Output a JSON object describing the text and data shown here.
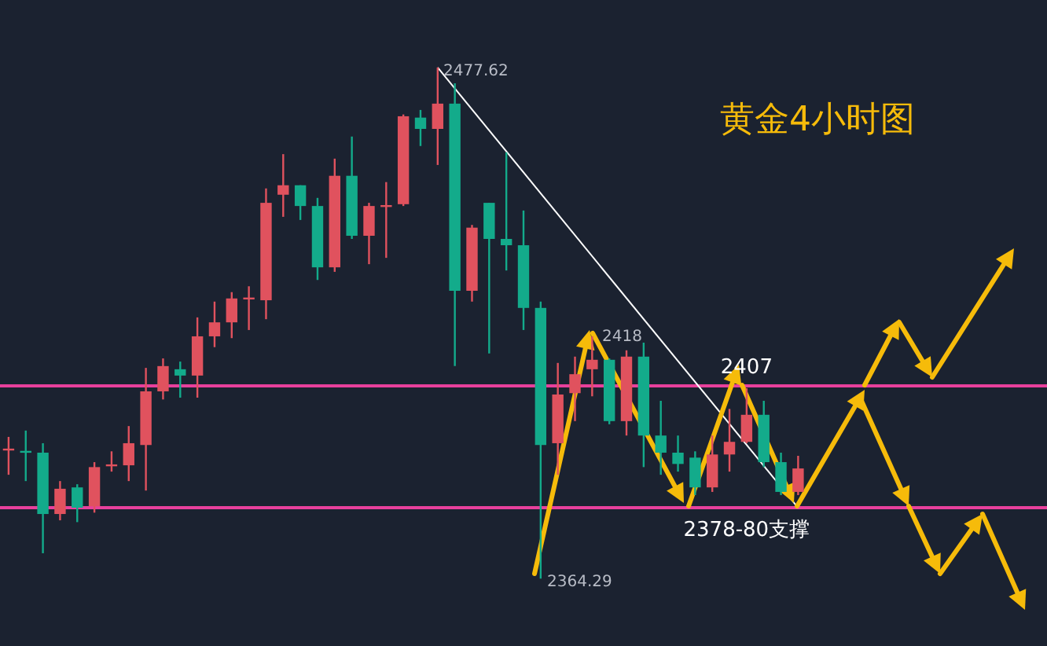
{
  "chart_data": {
    "type": "candlestick",
    "title": "黄金4小时图",
    "categories": [
      null,
      null,
      null,
      null,
      null,
      null,
      null,
      null,
      null,
      null,
      null,
      null,
      null,
      null,
      null,
      null,
      null,
      null,
      null,
      null,
      null,
      null,
      null,
      null,
      null,
      null,
      null,
      null,
      null,
      null,
      null,
      null,
      null,
      null,
      null,
      null,
      null,
      null,
      null,
      null,
      null,
      null,
      null,
      null,
      null,
      null,
      null,
      null,
      null,
      null,
      null,
      null,
      null,
      null,
      null,
      null,
      null,
      null,
      null,
      null,
      null
    ],
    "ohlc": [
      [
        2392.9,
        2395.7,
        2387.3,
        2393.1
      ],
      [
        2392.6,
        2397.1,
        2385.9,
        2392.4
      ],
      [
        2392.2,
        2394.3,
        2369.9,
        2378.6
      ],
      [
        2378.6,
        2385.9,
        2377.2,
        2384.2
      ],
      [
        2384.5,
        2385.2,
        2376.8,
        2380.0
      ],
      [
        2380.3,
        2390.1,
        2378.9,
        2389.0
      ],
      [
        2389.4,
        2392.5,
        2388.0,
        2389.6
      ],
      [
        2389.4,
        2398.1,
        2385.9,
        2394.3
      ],
      [
        2393.9,
        2411.0,
        2383.8,
        2405.8
      ],
      [
        2405.8,
        2413.1,
        2404.0,
        2411.4
      ],
      [
        2410.7,
        2412.4,
        2404.4,
        2409.3
      ],
      [
        2409.3,
        2422.2,
        2404.4,
        2418.0
      ],
      [
        2418.0,
        2425.7,
        2415.6,
        2421.1
      ],
      [
        2421.1,
        2427.8,
        2417.6,
        2426.4
      ],
      [
        2426.4,
        2429.1,
        2419.4,
        2426.6
      ],
      [
        2426.0,
        2450.8,
        2421.8,
        2447.6
      ],
      [
        2449.4,
        2458.4,
        2444.5,
        2451.5
      ],
      [
        2451.5,
        2451.5,
        2443.8,
        2446.9
      ],
      [
        2446.9,
        2448.7,
        2430.5,
        2433.3
      ],
      [
        2433.3,
        2457.4,
        2432.3,
        2453.6
      ],
      [
        2453.6,
        2462.3,
        2439.6,
        2440.3
      ],
      [
        2440.3,
        2447.6,
        2434.0,
        2446.9
      ],
      [
        2446.9,
        2452.2,
        2435.4,
        2447.1
      ],
      [
        2447.3,
        2467.2,
        2446.9,
        2466.8
      ],
      [
        2466.5,
        2468.2,
        2460.2,
        2464.0
      ],
      [
        2464.0,
        2477.62,
        2456.0,
        2469.6
      ],
      [
        2469.6,
        2474.1,
        2411.4,
        2428.1
      ],
      [
        2428.1,
        2442.7,
        2425.7,
        2442.1
      ],
      [
        2447.6,
        2447.6,
        2414.2,
        2439.6
      ],
      [
        2439.6,
        2458.8,
        2432.6,
        2438.2
      ],
      [
        2438.2,
        2445.9,
        2419.4,
        2424.3
      ],
      [
        2424.3,
        2425.7,
        2364.29,
        2393.9
      ],
      [
        2394.3,
        2412.1,
        2387.3,
        2405.1
      ],
      [
        2405.4,
        2413.5,
        2399.2,
        2409.6
      ],
      [
        2410.7,
        2418,
        2404.7,
        2412.8
      ],
      [
        2412.8,
        2413.1,
        2398.5,
        2399.2
      ],
      [
        2399.2,
        2414.9,
        2396.0,
        2413.5
      ],
      [
        2413.5,
        2416.6,
        2389.0,
        2396.0
      ],
      [
        2396.0,
        2403.7,
        2387.3,
        2392.2
      ],
      [
        2392.2,
        2396.0,
        2388.0,
        2389.7
      ],
      [
        2391.1,
        2392.5,
        2382.8,
        2384.5
      ],
      [
        2384.5,
        2396.0,
        2383.5,
        2391.8
      ],
      [
        2391.8,
        2401.9,
        2388.0,
        2394.6
      ],
      [
        2394.6,
        2406.5,
        2394.3,
        2400.6
      ],
      [
        2400.6,
        2403.7,
        2389.0,
        2390.1
      ],
      [
        2390.1,
        2392.2,
        2382.8,
        2383.5
      ],
      [
        2383.5,
        2391.5,
        2382.8,
        2388.7
      ],
      null,
      null,
      null,
      null,
      null,
      null,
      null,
      null,
      null,
      null,
      null,
      null,
      null,
      null
    ],
    "series": [
      {
        "type": "line",
        "color": "#ffffff",
        "values": [
          null,
          null,
          null,
          null,
          null,
          null,
          null,
          null,
          null,
          null,
          null,
          null,
          null,
          null,
          null,
          null,
          null,
          null,
          null,
          null,
          null,
          null,
          null,
          null,
          null,
          2477.6,
          null,
          null,
          null,
          null,
          null,
          null,
          null,
          null,
          null,
          null,
          null,
          null,
          null,
          null,
          null,
          null,
          null,
          null,
          null,
          null,
          2380,
          null,
          null,
          null,
          null,
          null,
          null,
          null,
          null,
          null,
          null,
          null,
          null,
          null,
          null
        ]
      }
    ],
    "ref_lines": [
      {
        "axis": "y",
        "value": 2407,
        "label": "2407",
        "color": "#e8409c"
      },
      {
        "axis": "y",
        "value": 2380,
        "label": "2378-80支撑",
        "color": "#e8409c"
      }
    ],
    "annotations": [
      "2477.62",
      "2418",
      "2364.29"
    ]
  }
}
